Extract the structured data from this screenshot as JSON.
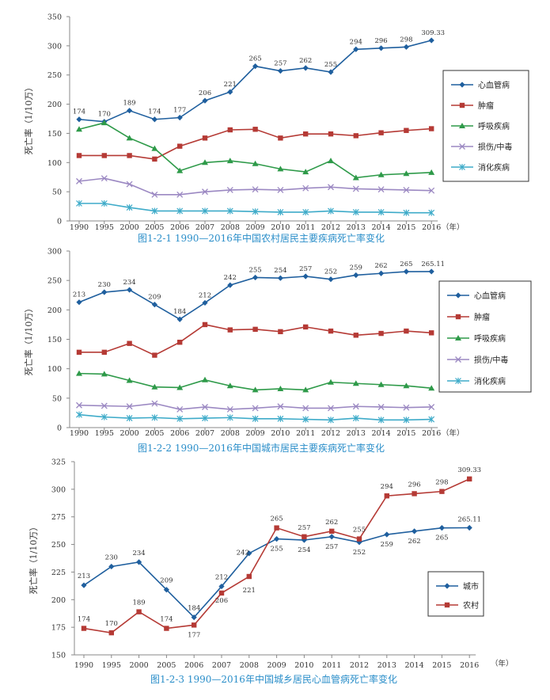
{
  "colors": {
    "cardio": "#1f5f9e",
    "tumor": "#b53a35",
    "resp": "#2e9a49",
    "injury": "#9b88c2",
    "digest": "#3eabc9",
    "caption": "#2a8ec9"
  },
  "chart_data": [
    {
      "type": "line",
      "categories": [
        "1990",
        "1995",
        "2000",
        "2005",
        "2006",
        "2007",
        "2008",
        "2009",
        "2010",
        "2011",
        "2012",
        "2013",
        "2014",
        "2015",
        "2016"
      ],
      "x_unit": "（年）",
      "ylabel": "死亡率（1/10万）",
      "ylim": [
        0,
        350
      ],
      "yticks": [
        "0",
        "50",
        "100",
        "150",
        "200",
        "250",
        "300",
        "350"
      ],
      "caption": "图1-2-1  1990—2016年中国农村居民主要疾病死亡率变化",
      "legend_placement": "right",
      "series": [
        {
          "name": "心血管病",
          "color_key": "cardio",
          "marker": "diamond",
          "values": [
            174,
            170,
            189,
            174,
            177,
            206,
            221,
            265,
            257,
            262,
            255,
            294,
            296,
            298,
            309.33
          ],
          "labels": [
            "174",
            "170",
            "189",
            "174",
            "177",
            "206",
            "221",
            "265",
            "257",
            "262",
            "255",
            "294",
            "296",
            "298",
            "309.33"
          ]
        },
        {
          "name": "肿瘤",
          "color_key": "tumor",
          "marker": "square",
          "values": [
            112,
            112,
            112,
            106,
            128,
            142,
            156,
            157,
            142,
            149,
            149,
            146,
            151,
            155,
            158
          ],
          "labels": []
        },
        {
          "name": "呼吸疾病",
          "color_key": "resp",
          "marker": "triangle",
          "values": [
            157,
            168,
            142,
            124,
            86,
            100,
            103,
            98,
            89,
            84,
            103,
            74,
            79,
            81,
            83
          ],
          "labels": []
        },
        {
          "name": "损伤/中毒",
          "color_key": "injury",
          "marker": "x",
          "values": [
            68,
            73,
            63,
            45,
            45,
            50,
            53,
            54,
            53,
            56,
            58,
            55,
            54,
            53,
            52
          ],
          "labels": []
        },
        {
          "name": "消化疾病",
          "color_key": "digest",
          "marker": "star",
          "values": [
            30,
            30,
            23,
            17,
            17,
            17,
            17,
            16,
            15,
            15,
            17,
            15,
            15,
            14,
            14
          ],
          "labels": []
        }
      ]
    },
    {
      "type": "line",
      "categories": [
        "1990",
        "1995",
        "2000",
        "2005",
        "2006",
        "2007",
        "2008",
        "2009",
        "2010",
        "2011",
        "2012",
        "2013",
        "2014",
        "2015",
        "2016"
      ],
      "x_unit": "（年）",
      "ylabel": "死亡率（1/10万）",
      "ylim": [
        0,
        300
      ],
      "yticks": [
        "0",
        "50",
        "100",
        "150",
        "200",
        "250",
        "300"
      ],
      "caption": "图1-2-2  1990—2016年中国城市居民主要疾病死亡率变化",
      "legend_placement": "right",
      "series": [
        {
          "name": "心血管病",
          "color_key": "cardio",
          "marker": "diamond",
          "values": [
            213,
            230,
            234,
            209,
            184,
            212,
            242,
            255,
            254,
            257,
            252,
            259,
            262,
            265,
            265.11
          ],
          "labels": [
            "213",
            "230",
            "234",
            "209",
            "184",
            "212",
            "242",
            "255",
            "254",
            "257",
            "252",
            "259",
            "262",
            "265",
            "265.11"
          ]
        },
        {
          "name": "肿瘤",
          "color_key": "tumor",
          "marker": "square",
          "values": [
            128,
            128,
            143,
            123,
            145,
            175,
            166,
            167,
            163,
            171,
            164,
            157,
            160,
            164,
            161
          ],
          "labels": []
        },
        {
          "name": "呼吸疾病",
          "color_key": "resp",
          "marker": "triangle",
          "values": [
            92,
            91,
            80,
            69,
            68,
            81,
            71,
            64,
            66,
            64,
            77,
            75,
            73,
            71,
            67
          ],
          "labels": []
        },
        {
          "name": "损伤/中毒",
          "color_key": "injury",
          "marker": "x",
          "values": [
            38,
            37,
            36,
            41,
            31,
            35,
            31,
            33,
            36,
            33,
            33,
            36,
            35,
            34,
            35
          ],
          "labels": []
        },
        {
          "name": "消化疾病",
          "color_key": "digest",
          "marker": "star",
          "values": [
            22,
            18,
            16,
            17,
            15,
            16,
            17,
            15,
            15,
            14,
            13,
            16,
            13,
            13,
            14
          ],
          "labels": []
        }
      ]
    },
    {
      "type": "line",
      "categories": [
        "1990",
        "1995",
        "2000",
        "2005",
        "2006",
        "2007",
        "2008",
        "2009",
        "2010",
        "2011",
        "2012",
        "2013",
        "2014",
        "2015",
        "2016"
      ],
      "x_unit": "（年）",
      "ylabel": "死亡率（1/10万）",
      "ylim": [
        150,
        325
      ],
      "yticks": [
        "150",
        "175",
        "200",
        "225",
        "250",
        "275",
        "300",
        "325"
      ],
      "caption": "图1-2-3  1990—2016年中国城乡居民心血管病死亡率变化",
      "legend_placement": "right",
      "series": [
        {
          "name": "城市",
          "color_key": "cardio",
          "marker": "diamond",
          "values": [
            213,
            230,
            234,
            209,
            184,
            212,
            242,
            255,
            254,
            257,
            252,
            259,
            262,
            265,
            265.11
          ],
          "labels": [
            "213",
            "230",
            "234",
            "209",
            "184",
            "212",
            "242",
            "255",
            "254",
            "257",
            "252",
            "259",
            "262",
            "265",
            "265.11"
          ]
        },
        {
          "name": "农村",
          "color_key": "tumor",
          "marker": "square",
          "values": [
            174,
            170,
            189,
            174,
            177,
            206,
            221,
            265,
            257,
            262,
            255,
            294,
            296,
            298,
            309.33
          ],
          "labels": [
            "174",
            "170",
            "189",
            "174",
            "177",
            "206",
            "221",
            "265",
            "257",
            "262",
            "255",
            "294",
            "296",
            "298",
            "309.33"
          ]
        }
      ]
    }
  ]
}
